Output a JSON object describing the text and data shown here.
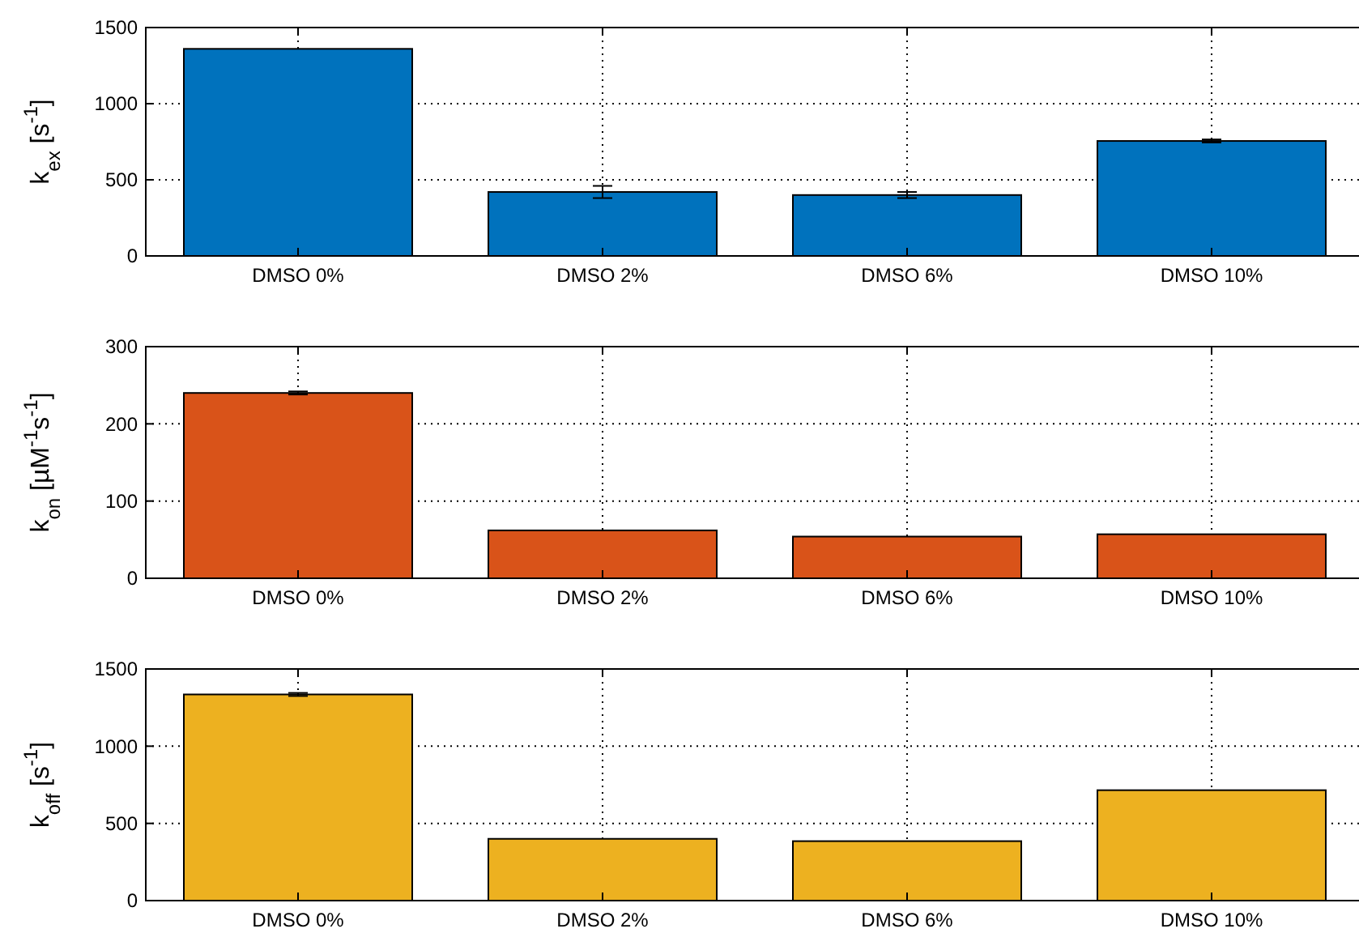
{
  "chart_data": [
    {
      "type": "bar",
      "categories": [
        "DMSO 0%",
        "DMSO 2%",
        "DMSO 6%",
        "DMSO 10%"
      ],
      "ylabel": "k$_{ex}$ [s$^{-1}$]",
      "ylim": [
        0,
        1500
      ],
      "yticks": [
        0,
        500,
        1000,
        1500
      ],
      "grid": true,
      "series": [
        {
          "color": "#0072bd",
          "values": [
            1360,
            420,
            400,
            755
          ],
          "errors": [
            null,
            40,
            20,
            10
          ]
        }
      ]
    },
    {
      "type": "bar",
      "categories": [
        "DMSO 0%",
        "DMSO 2%",
        "DMSO 6%",
        "DMSO 10%"
      ],
      "ylabel": "k$_{on}$ [µM$^{-1}$s$^{-1}$]",
      "ylim": [
        0,
        300
      ],
      "yticks": [
        0,
        100,
        200,
        300
      ],
      "grid": true,
      "series": [
        {
          "color": "#d95319",
          "values": [
            240,
            62,
            54,
            57
          ],
          "errors": [
            2,
            null,
            null,
            null
          ]
        }
      ]
    },
    {
      "type": "bar",
      "categories": [
        "DMSO 0%",
        "DMSO 2%",
        "DMSO 6%",
        "DMSO 10%"
      ],
      "ylabel": "k$_{off}$ [s$^{-1}$]",
      "ylim": [
        0,
        1500
      ],
      "yticks": [
        0,
        500,
        1000,
        1500
      ],
      "grid": true,
      "series": [
        {
          "color": "#edb120",
          "values": [
            1335,
            400,
            385,
            715
          ],
          "errors": [
            10,
            null,
            null,
            null
          ]
        }
      ]
    }
  ]
}
